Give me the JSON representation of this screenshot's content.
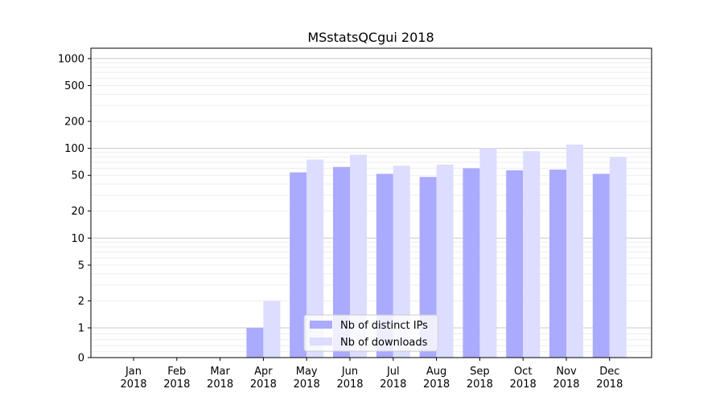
{
  "chart_data": {
    "type": "bar",
    "title": "MSstatsQCgui 2018",
    "xlabel": "",
    "ylabel": "",
    "yscale": "symlog",
    "ylim": [
      0,
      1300
    ],
    "yticks": [
      0,
      1,
      2,
      5,
      10,
      20,
      50,
      100,
      200,
      500,
      1000
    ],
    "categories": [
      "Jan\n2018",
      "Feb\n2018",
      "Mar\n2018",
      "Apr\n2018",
      "May\n2018",
      "Jun\n2018",
      "Jul\n2018",
      "Aug\n2018",
      "Sep\n2018",
      "Oct\n2018",
      "Nov\n2018",
      "Dec\n2018"
    ],
    "series": [
      {
        "name": "Nb of distinct IPs",
        "color": "#aaaaff",
        "values": [
          0,
          0,
          0,
          1,
          54,
          62,
          52,
          48,
          60,
          57,
          58,
          52
        ]
      },
      {
        "name": "Nb of downloads",
        "color": "#ddddff",
        "values": [
          0,
          0,
          0,
          2,
          75,
          85,
          64,
          66,
          100,
          93,
          110,
          80
        ]
      }
    ],
    "legend": "lower-center",
    "grid": true
  }
}
